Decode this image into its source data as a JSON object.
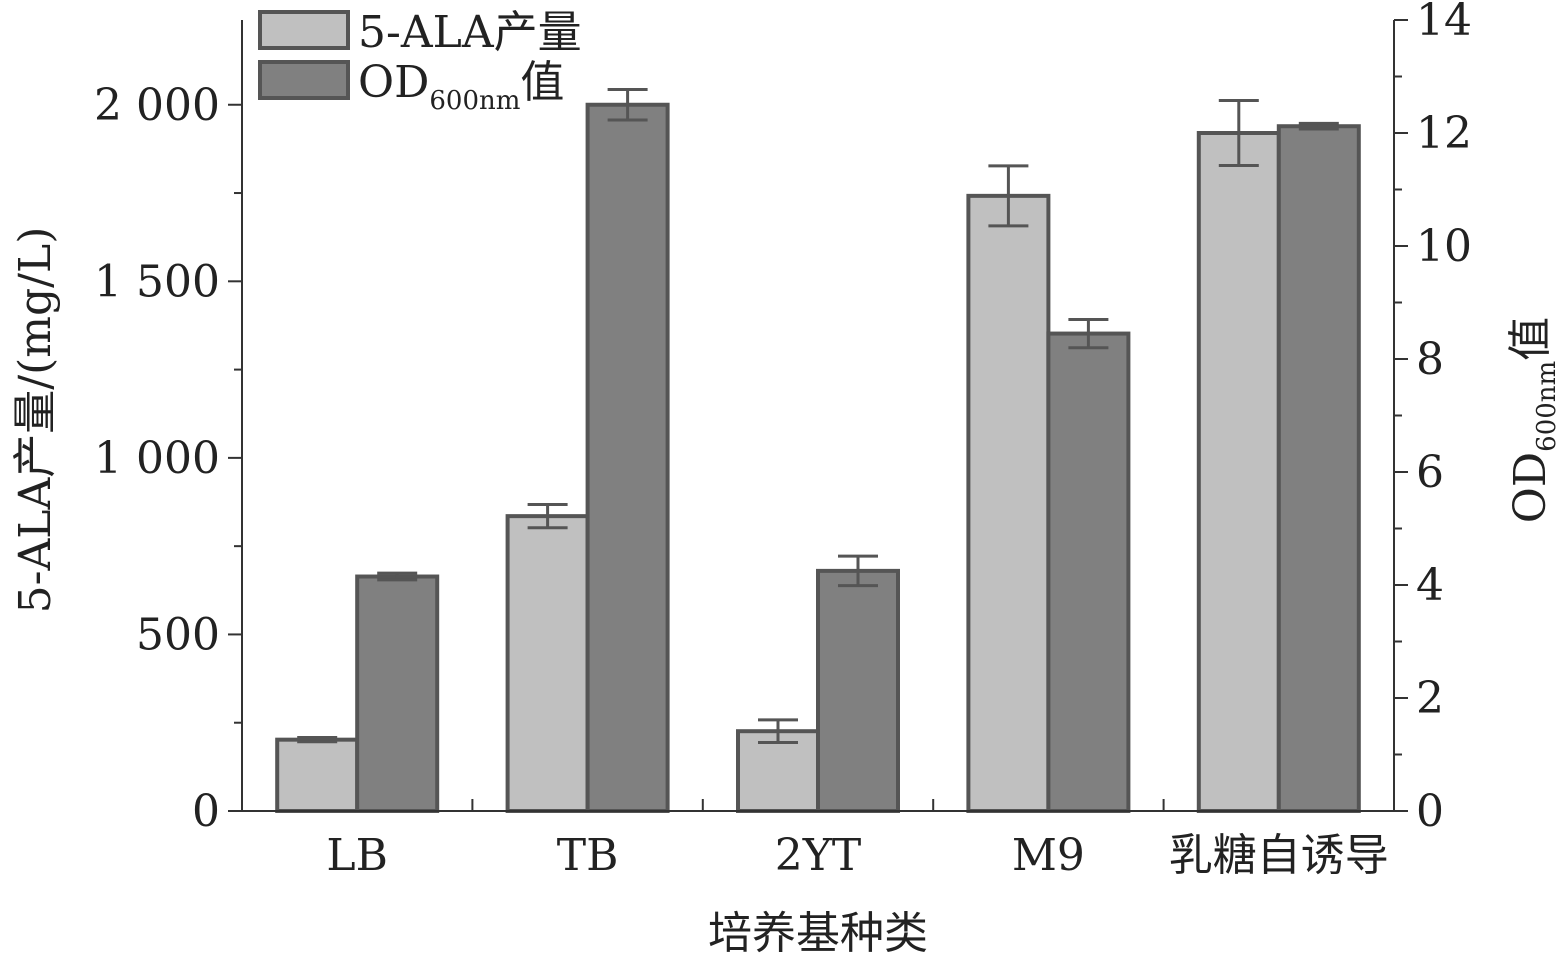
{
  "chart_data": {
    "type": "bar",
    "xlabel": "培养基种类",
    "ylabel": "5-ALA产量/(mg/L)",
    "ylabel2": {
      "main": "OD",
      "sub": "600nm",
      "suffix": "值"
    },
    "categories": [
      "LB",
      "TB",
      "2YT",
      "M9",
      "乳糖自诱导"
    ],
    "ylim": [
      0,
      2240
    ],
    "y2lim": [
      0,
      14
    ],
    "yticks": [
      0,
      500,
      1000,
      1500,
      2000
    ],
    "ytick_labels": [
      "0",
      "500",
      "1 000",
      "1 500",
      "2 000"
    ],
    "y2ticks": [
      0,
      2,
      4,
      6,
      8,
      10,
      12,
      14
    ],
    "y2tick_labels": [
      "0",
      "2",
      "4",
      "6",
      "8",
      "10",
      "12",
      "14"
    ],
    "series": [
      {
        "name": "5-ALA产量",
        "axis": "left",
        "color": "#c0c0c0",
        "values": [
          202,
          835,
          226,
          1742,
          1920
        ],
        "errors": [
          6,
          33,
          32,
          85,
          92
        ]
      },
      {
        "name": "OD600nm值",
        "legend": {
          "main": "OD",
          "sub": "600nm",
          "suffix": "值"
        },
        "axis": "right",
        "color": "#808080",
        "values": [
          4.15,
          12.5,
          4.25,
          8.45,
          12.12
        ],
        "errors": [
          0.06,
          0.27,
          0.26,
          0.25,
          0.05
        ]
      }
    ],
    "legend_position": "top-left",
    "grid": false
  }
}
